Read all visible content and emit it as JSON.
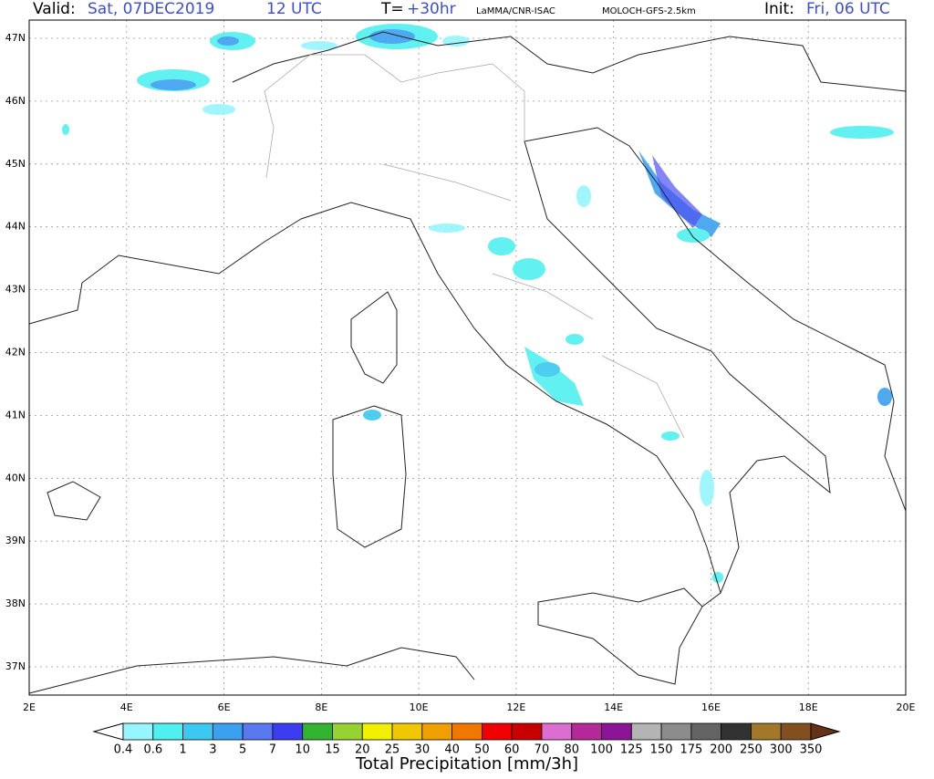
{
  "header": {
    "valid_label": "Valid:",
    "valid_date": "Sat, 07DEC2019",
    "valid_hour": "12 UTC",
    "lead_label": "T=",
    "lead": "+30hr",
    "source": "LaMMA/CNR-ISAC",
    "model": "MOLOCH-GFS-2.5km",
    "init_label": "Init:",
    "init_time": "Fri, 06 UTC"
  },
  "map": {
    "lat_labels": [
      "47N",
      "46N",
      "45N",
      "44N",
      "43N",
      "42N",
      "41N",
      "40N",
      "39N",
      "38N",
      "37N"
    ],
    "lon_labels": [
      "2E",
      "4E",
      "6E",
      "8E",
      "10E",
      "12E",
      "14E",
      "16E",
      "18E",
      "20E"
    ]
  },
  "legend": {
    "title": "Total Precipitation [mm/3h]",
    "labels": [
      0.4,
      0.6,
      1,
      3,
      5,
      7,
      10,
      15,
      20,
      25,
      30,
      40,
      50,
      60,
      70,
      80,
      100,
      125,
      150,
      175,
      200,
      250,
      300,
      350
    ],
    "colors": [
      "#ffffff",
      "#96f5ff",
      "#50f0f0",
      "#3cc8f0",
      "#3ca0f0",
      "#5a78f0",
      "#3c3cf0",
      "#32b432",
      "#96d232",
      "#f0f000",
      "#f0c800",
      "#f0a000",
      "#f07800",
      "#f00000",
      "#c80000",
      "#dc6ed2",
      "#b4289a",
      "#8c1496",
      "#b4b4b4",
      "#8c8c8c",
      "#646464",
      "#323232",
      "#a07828",
      "#82501e",
      "#643214"
    ]
  }
}
